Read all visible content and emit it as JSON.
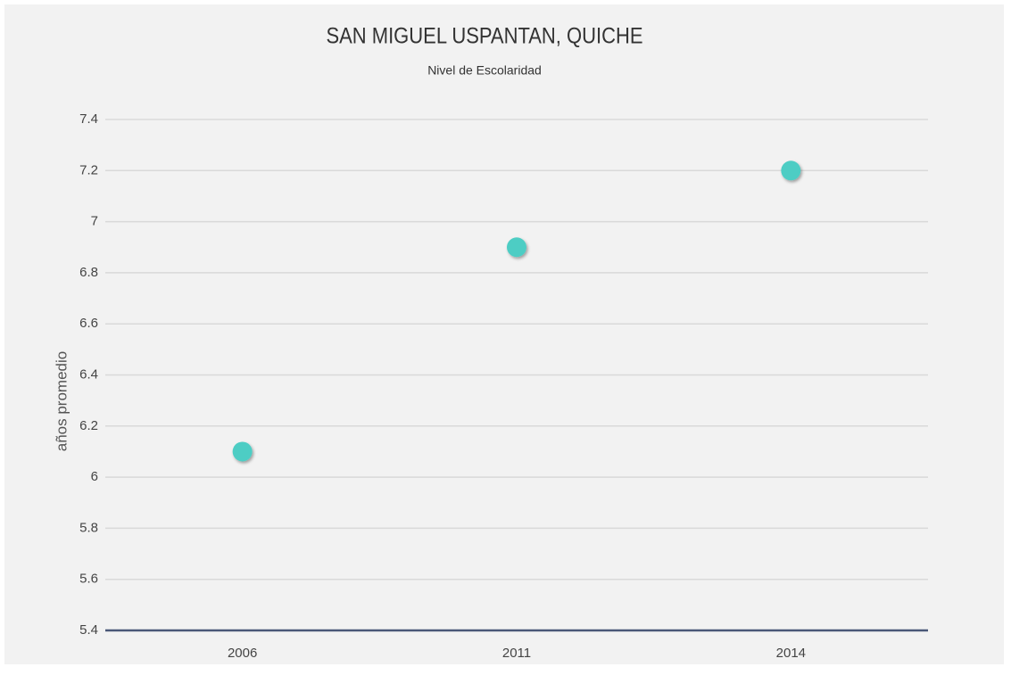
{
  "chart_data": {
    "type": "scatter",
    "title": "SAN MIGUEL USPANTAN, QUICHE",
    "subtitle": "Nivel de Escolaridad",
    "y_label": "años promedio",
    "categories": [
      "2006",
      "2011",
      "2014"
    ],
    "values": [
      6.1,
      6.9,
      7.2
    ],
    "color": "#4ecdc4",
    "ylim": [
      5.4,
      7.4
    ],
    "yticks": [
      5.4,
      5.6,
      5.8,
      6,
      6.2,
      6.4,
      6.6,
      6.8,
      7,
      7.2,
      7.4
    ],
    "grid": true
  }
}
